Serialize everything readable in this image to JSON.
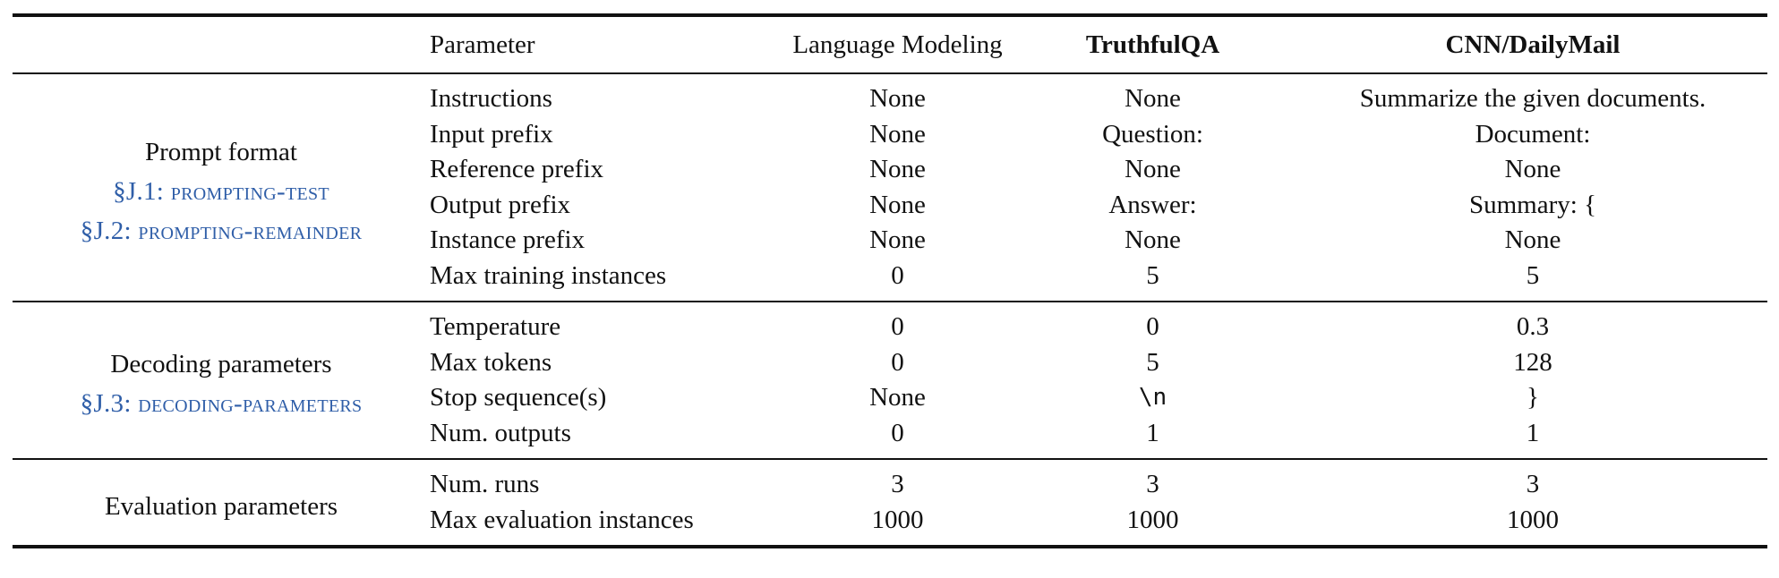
{
  "headers": {
    "group": "",
    "parameter": "Parameter",
    "language_modeling": "Language Modeling",
    "truthfulqa": "TruthfulQA",
    "cnn_dailymail": "CNN/DailyMail"
  },
  "sections": [
    {
      "title": "Prompt format",
      "refs": [
        "§J.1: prompting-test",
        "§J.2: prompting-remainder"
      ],
      "rows": [
        {
          "param": "Instructions",
          "lm": "None",
          "tqa": "None",
          "cnn": "Summarize the given documents."
        },
        {
          "param": "Input prefix",
          "lm": "None",
          "tqa": "Question:",
          "cnn": "Document:"
        },
        {
          "param": "Reference prefix",
          "lm": "None",
          "tqa": "None",
          "cnn": "None"
        },
        {
          "param": "Output prefix",
          "lm": "None",
          "tqa": "Answer:",
          "cnn": "Summary: {"
        },
        {
          "param": "Instance prefix",
          "lm": "None",
          "tqa": "None",
          "cnn": "None"
        },
        {
          "param": "Max training instances",
          "lm": "0",
          "tqa": "5",
          "cnn": "5"
        }
      ]
    },
    {
      "title": "Decoding parameters",
      "refs": [
        "§J.3: decoding-parameters"
      ],
      "rows": [
        {
          "param": "Temperature",
          "lm": "0",
          "tqa": "0",
          "cnn": "0.3"
        },
        {
          "param": "Max tokens",
          "lm": "0",
          "tqa": "5",
          "cnn": "128"
        },
        {
          "param": "Stop sequence(s)",
          "lm": "None",
          "tqa": "\\n",
          "cnn": "}"
        },
        {
          "param": "Num. outputs",
          "lm": "0",
          "tqa": "1",
          "cnn": "1"
        }
      ]
    },
    {
      "title": "Evaluation parameters",
      "refs": [],
      "rows": [
        {
          "param": "Num. runs",
          "lm": "3",
          "tqa": "3",
          "cnn": "3"
        },
        {
          "param": "Max evaluation instances",
          "lm": "1000",
          "tqa": "1000",
          "cnn": "1000"
        }
      ]
    }
  ]
}
